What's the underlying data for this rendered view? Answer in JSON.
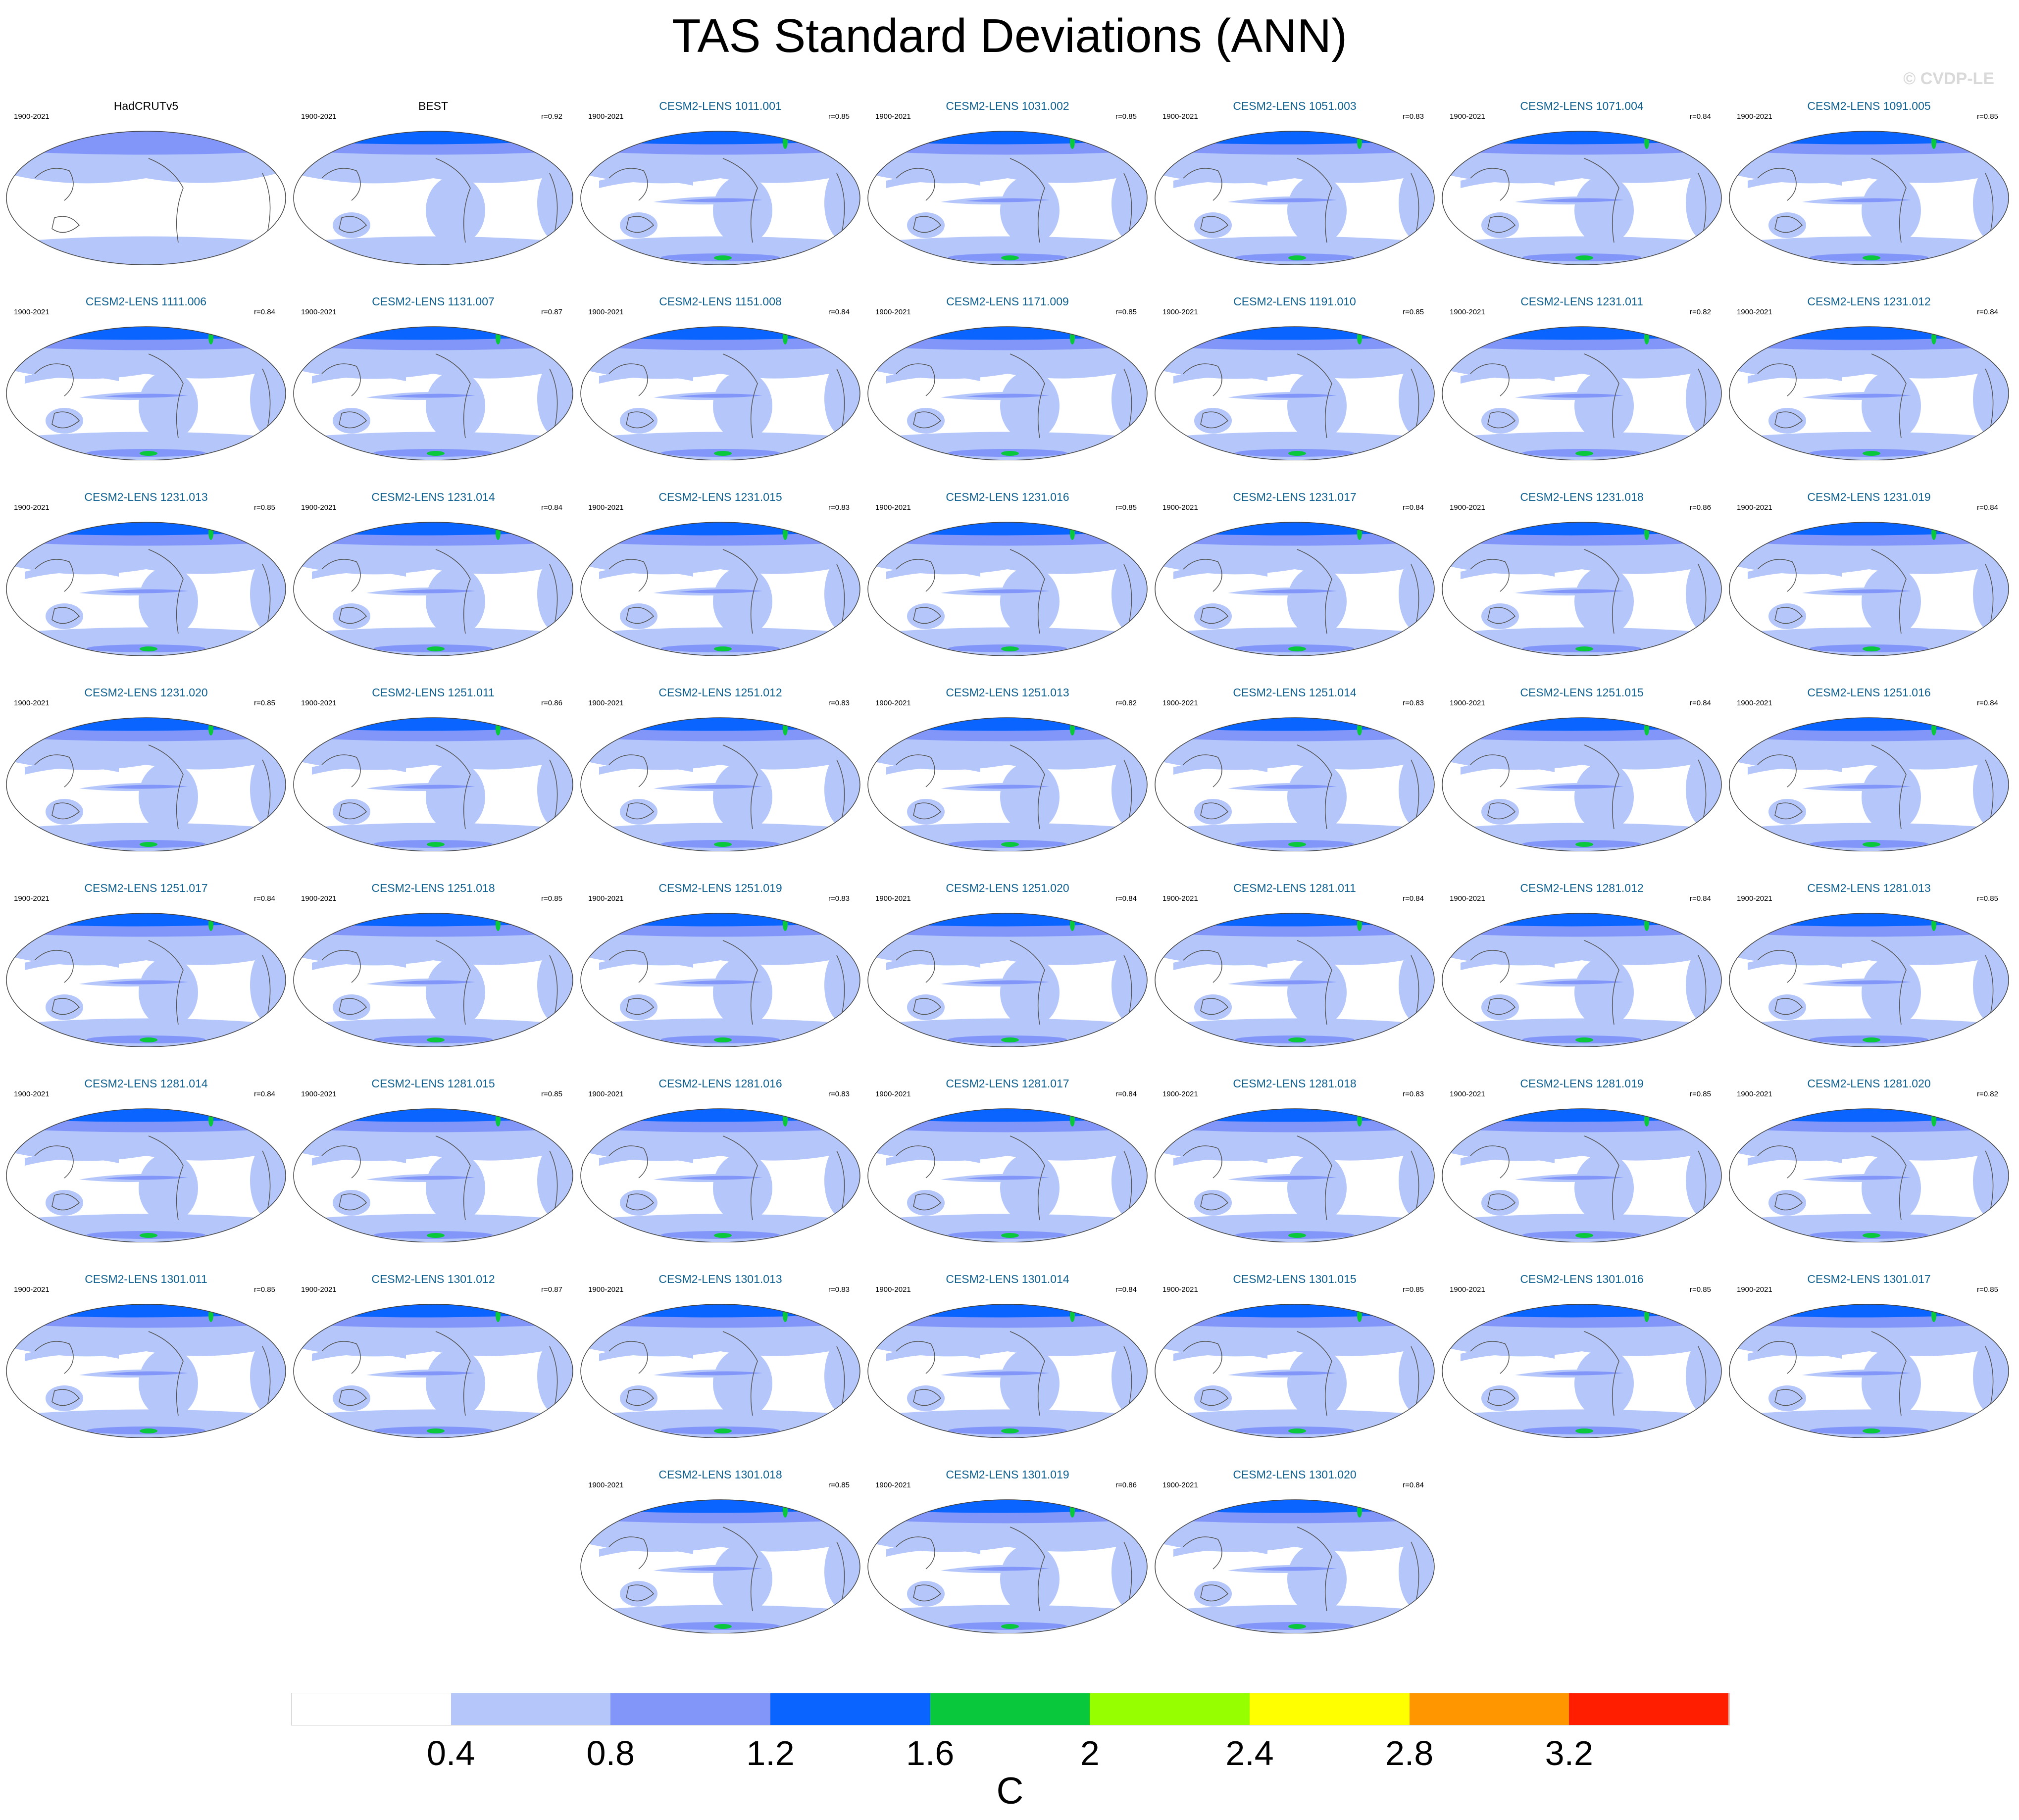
{
  "title": "TAS Standard Deviations (ANN)",
  "watermark": "© CVDP-LE",
  "chart_data": {
    "type": "map-panels",
    "field": "surface air temperature standard deviation, annual",
    "period": "1900-2021",
    "panels": [
      {
        "name": "HadCRUTv5",
        "period": "1900-2021",
        "r": "",
        "observational": true,
        "intensity": 0.3
      },
      {
        "name": "BEST",
        "period": "1900-2021",
        "r": "r=0.92",
        "observational": true,
        "intensity": 0.55
      },
      {
        "name": "CESM2-LENS 1011.001",
        "period": "1900-2021",
        "r": "r=0.85",
        "intensity": 1
      },
      {
        "name": "CESM2-LENS 1031.002",
        "period": "1900-2021",
        "r": "r=0.85",
        "intensity": 1
      },
      {
        "name": "CESM2-LENS 1051.003",
        "period": "1900-2021",
        "r": "r=0.83",
        "intensity": 1
      },
      {
        "name": "CESM2-LENS 1071.004",
        "period": "1900-2021",
        "r": "r=0.84",
        "intensity": 1
      },
      {
        "name": "CESM2-LENS 1091.005",
        "period": "1900-2021",
        "r": "r=0.85",
        "intensity": 1
      },
      {
        "name": "CESM2-LENS 1111.006",
        "period": "1900-2021",
        "r": "r=0.84",
        "intensity": 1
      },
      {
        "name": "CESM2-LENS 1131.007",
        "period": "1900-2021",
        "r": "r=0.87",
        "intensity": 1
      },
      {
        "name": "CESM2-LENS 1151.008",
        "period": "1900-2021",
        "r": "r=0.84",
        "intensity": 1
      },
      {
        "name": "CESM2-LENS 1171.009",
        "period": "1900-2021",
        "r": "r=0.85",
        "intensity": 1
      },
      {
        "name": "CESM2-LENS 1191.010",
        "period": "1900-2021",
        "r": "r=0.85",
        "intensity": 1
      },
      {
        "name": "CESM2-LENS 1231.011",
        "period": "1900-2021",
        "r": "r=0.82",
        "intensity": 1
      },
      {
        "name": "CESM2-LENS 1231.012",
        "period": "1900-2021",
        "r": "r=0.84",
        "intensity": 1
      },
      {
        "name": "CESM2-LENS 1231.013",
        "period": "1900-2021",
        "r": "r=0.85",
        "intensity": 1
      },
      {
        "name": "CESM2-LENS 1231.014",
        "period": "1900-2021",
        "r": "r=0.84",
        "intensity": 1
      },
      {
        "name": "CESM2-LENS 1231.015",
        "period": "1900-2021",
        "r": "r=0.83",
        "intensity": 1
      },
      {
        "name": "CESM2-LENS 1231.016",
        "period": "1900-2021",
        "r": "r=0.85",
        "intensity": 1
      },
      {
        "name": "CESM2-LENS 1231.017",
        "period": "1900-2021",
        "r": "r=0.84",
        "intensity": 1
      },
      {
        "name": "CESM2-LENS 1231.018",
        "period": "1900-2021",
        "r": "r=0.86",
        "intensity": 1
      },
      {
        "name": "CESM2-LENS 1231.019",
        "period": "1900-2021",
        "r": "r=0.84",
        "intensity": 1
      },
      {
        "name": "CESM2-LENS 1231.020",
        "period": "1900-2021",
        "r": "r=0.85",
        "intensity": 1
      },
      {
        "name": "CESM2-LENS 1251.011",
        "period": "1900-2021",
        "r": "r=0.86",
        "intensity": 1
      },
      {
        "name": "CESM2-LENS 1251.012",
        "period": "1900-2021",
        "r": "r=0.83",
        "intensity": 1
      },
      {
        "name": "CESM2-LENS 1251.013",
        "period": "1900-2021",
        "r": "r=0.82",
        "intensity": 1
      },
      {
        "name": "CESM2-LENS 1251.014",
        "period": "1900-2021",
        "r": "r=0.83",
        "intensity": 1
      },
      {
        "name": "CESM2-LENS 1251.015",
        "period": "1900-2021",
        "r": "r=0.84",
        "intensity": 1
      },
      {
        "name": "CESM2-LENS 1251.016",
        "period": "1900-2021",
        "r": "r=0.84",
        "intensity": 1
      },
      {
        "name": "CESM2-LENS 1251.017",
        "period": "1900-2021",
        "r": "r=0.84",
        "intensity": 1
      },
      {
        "name": "CESM2-LENS 1251.018",
        "period": "1900-2021",
        "r": "r=0.85",
        "intensity": 1
      },
      {
        "name": "CESM2-LENS 1251.019",
        "period": "1900-2021",
        "r": "r=0.83",
        "intensity": 1
      },
      {
        "name": "CESM2-LENS 1251.020",
        "period": "1900-2021",
        "r": "r=0.84",
        "intensity": 1
      },
      {
        "name": "CESM2-LENS 1281.011",
        "period": "1900-2021",
        "r": "r=0.84",
        "intensity": 1
      },
      {
        "name": "CESM2-LENS 1281.012",
        "period": "1900-2021",
        "r": "r=0.84",
        "intensity": 1
      },
      {
        "name": "CESM2-LENS 1281.013",
        "period": "1900-2021",
        "r": "r=0.85",
        "intensity": 1
      },
      {
        "name": "CESM2-LENS 1281.014",
        "period": "1900-2021",
        "r": "r=0.84",
        "intensity": 1
      },
      {
        "name": "CESM2-LENS 1281.015",
        "period": "1900-2021",
        "r": "r=0.85",
        "intensity": 1
      },
      {
        "name": "CESM2-LENS 1281.016",
        "period": "1900-2021",
        "r": "r=0.83",
        "intensity": 1
      },
      {
        "name": "CESM2-LENS 1281.017",
        "period": "1900-2021",
        "r": "r=0.84",
        "intensity": 1
      },
      {
        "name": "CESM2-LENS 1281.018",
        "period": "1900-2021",
        "r": "r=0.83",
        "intensity": 1
      },
      {
        "name": "CESM2-LENS 1281.019",
        "period": "1900-2021",
        "r": "r=0.85",
        "intensity": 1
      },
      {
        "name": "CESM2-LENS 1281.020",
        "period": "1900-2021",
        "r": "r=0.82",
        "intensity": 1
      },
      {
        "name": "CESM2-LENS 1301.011",
        "period": "1900-2021",
        "r": "r=0.85",
        "intensity": 1
      },
      {
        "name": "CESM2-LENS 1301.012",
        "period": "1900-2021",
        "r": "r=0.87",
        "intensity": 1
      },
      {
        "name": "CESM2-LENS 1301.013",
        "period": "1900-2021",
        "r": "r=0.83",
        "intensity": 1
      },
      {
        "name": "CESM2-LENS 1301.014",
        "period": "1900-2021",
        "r": "r=0.84",
        "intensity": 1
      },
      {
        "name": "CESM2-LENS 1301.015",
        "period": "1900-2021",
        "r": "r=0.85",
        "intensity": 1
      },
      {
        "name": "CESM2-LENS 1301.016",
        "period": "1900-2021",
        "r": "r=0.85",
        "intensity": 1
      },
      {
        "name": "CESM2-LENS 1301.017",
        "period": "1900-2021",
        "r": "r=0.85",
        "intensity": 1
      },
      {
        "name": "CESM2-LENS 1301.018",
        "period": "1900-2021",
        "r": "r=0.85",
        "intensity": 1
      },
      {
        "name": "CESM2-LENS 1301.019",
        "period": "1900-2021",
        "r": "r=0.86",
        "intensity": 1
      },
      {
        "name": "CESM2-LENS 1301.020",
        "period": "1900-2021",
        "r": "r=0.84",
        "intensity": 1
      }
    ],
    "colorbar": {
      "unit": "C",
      "levels": [
        0.4,
        0.8,
        1.2,
        1.6,
        2,
        2.4,
        2.8,
        3.2
      ],
      "tick_labels": [
        "0.4",
        "0.8",
        "1.2",
        "1.6",
        "2",
        "2.4",
        "2.8",
        "3.2"
      ],
      "colors": [
        "#ffffff",
        "#b4c6fa",
        "#8296fa",
        "#0a64ff",
        "#0ac83c",
        "#96ff00",
        "#ffff00",
        "#ff9600",
        "#ff1e00"
      ]
    }
  },
  "colors": {
    "model_title": "#0e5f8e",
    "obs_title": "#000000",
    "coast": "#555555"
  }
}
